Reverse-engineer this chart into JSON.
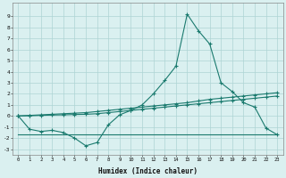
{
  "xlabel": "Humidex (Indice chaleur)",
  "x": [
    0,
    1,
    2,
    3,
    4,
    5,
    6,
    7,
    8,
    9,
    10,
    11,
    12,
    13,
    14,
    15,
    16,
    17,
    18,
    19,
    20,
    21,
    22,
    23
  ],
  "y_main": [
    0.0,
    -1.2,
    -1.4,
    -1.3,
    -1.5,
    -2.0,
    -2.7,
    -2.4,
    -0.8,
    0.1,
    0.5,
    1.0,
    2.0,
    3.2,
    4.5,
    9.2,
    7.7,
    6.5,
    3.0,
    2.2,
    1.2,
    0.8,
    -1.1,
    -1.7
  ],
  "y_line1": [
    0.0,
    0.05,
    0.1,
    0.15,
    0.2,
    0.25,
    0.3,
    0.4,
    0.5,
    0.6,
    0.7,
    0.8,
    0.9,
    1.0,
    1.1,
    1.2,
    1.35,
    1.5,
    1.6,
    1.7,
    1.8,
    1.9,
    2.0,
    2.1
  ],
  "y_line2": [
    0.0,
    0.02,
    0.05,
    0.08,
    0.1,
    0.13,
    0.15,
    0.2,
    0.3,
    0.4,
    0.5,
    0.6,
    0.7,
    0.8,
    0.9,
    1.0,
    1.1,
    1.2,
    1.3,
    1.4,
    1.5,
    1.6,
    1.7,
    1.8
  ],
  "y_flat": [
    -1.7,
    -1.7,
    -1.7,
    -1.7,
    -1.7,
    -1.7,
    -1.7,
    -1.7,
    -1.7,
    -1.7,
    -1.7,
    -1.7,
    -1.7,
    -1.7,
    -1.7,
    -1.7,
    -1.7,
    -1.7,
    -1.7,
    -1.7,
    -1.7,
    -1.7,
    -1.7,
    -1.7
  ],
  "line_color": "#1a7a6e",
  "bg_color": "#daf0f0",
  "grid_color": "#aed4d4",
  "ylim": [
    -3.5,
    10.2
  ],
  "xlim": [
    -0.5,
    23.5
  ],
  "yticks": [
    -3,
    -2,
    -1,
    0,
    1,
    2,
    3,
    4,
    5,
    6,
    7,
    8,
    9
  ],
  "xticks": [
    0,
    1,
    2,
    3,
    4,
    5,
    6,
    7,
    8,
    9,
    10,
    11,
    12,
    13,
    14,
    15,
    16,
    17,
    18,
    19,
    20,
    21,
    22,
    23
  ]
}
